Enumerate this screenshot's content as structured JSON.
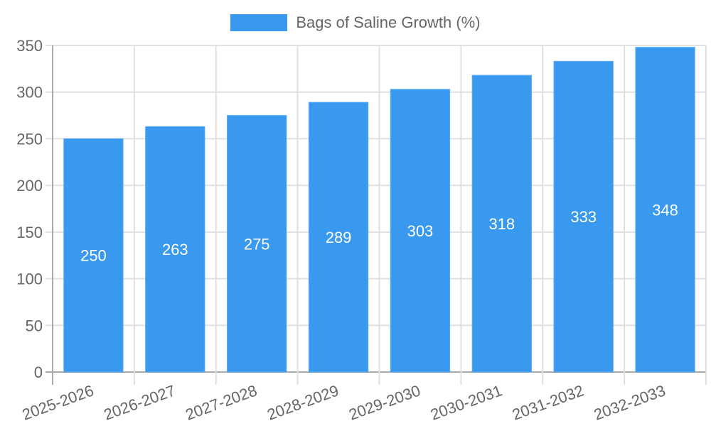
{
  "chart_data": {
    "type": "bar",
    "title": "",
    "legend": [
      {
        "label": "Bags of Saline Growth (%)",
        "color": "#3899ef"
      }
    ],
    "legend_position": "top",
    "categories": [
      "2025-2026",
      "2026-2027",
      "2027-2028",
      "2028-2029",
      "2029-2030",
      "2030-2031",
      "2031-2032",
      "2032-2033"
    ],
    "series": [
      {
        "name": "Bags of Saline Growth (%)",
        "values": [
          250,
          263,
          275,
          289,
          303,
          318,
          333,
          348
        ],
        "color": "#3899ef"
      }
    ],
    "xlabel": "",
    "ylabel": "",
    "ylim": [
      0,
      350
    ],
    "yticks": [
      0,
      50,
      100,
      150,
      200,
      250,
      300,
      350
    ],
    "grid": true,
    "data_labels": true
  }
}
